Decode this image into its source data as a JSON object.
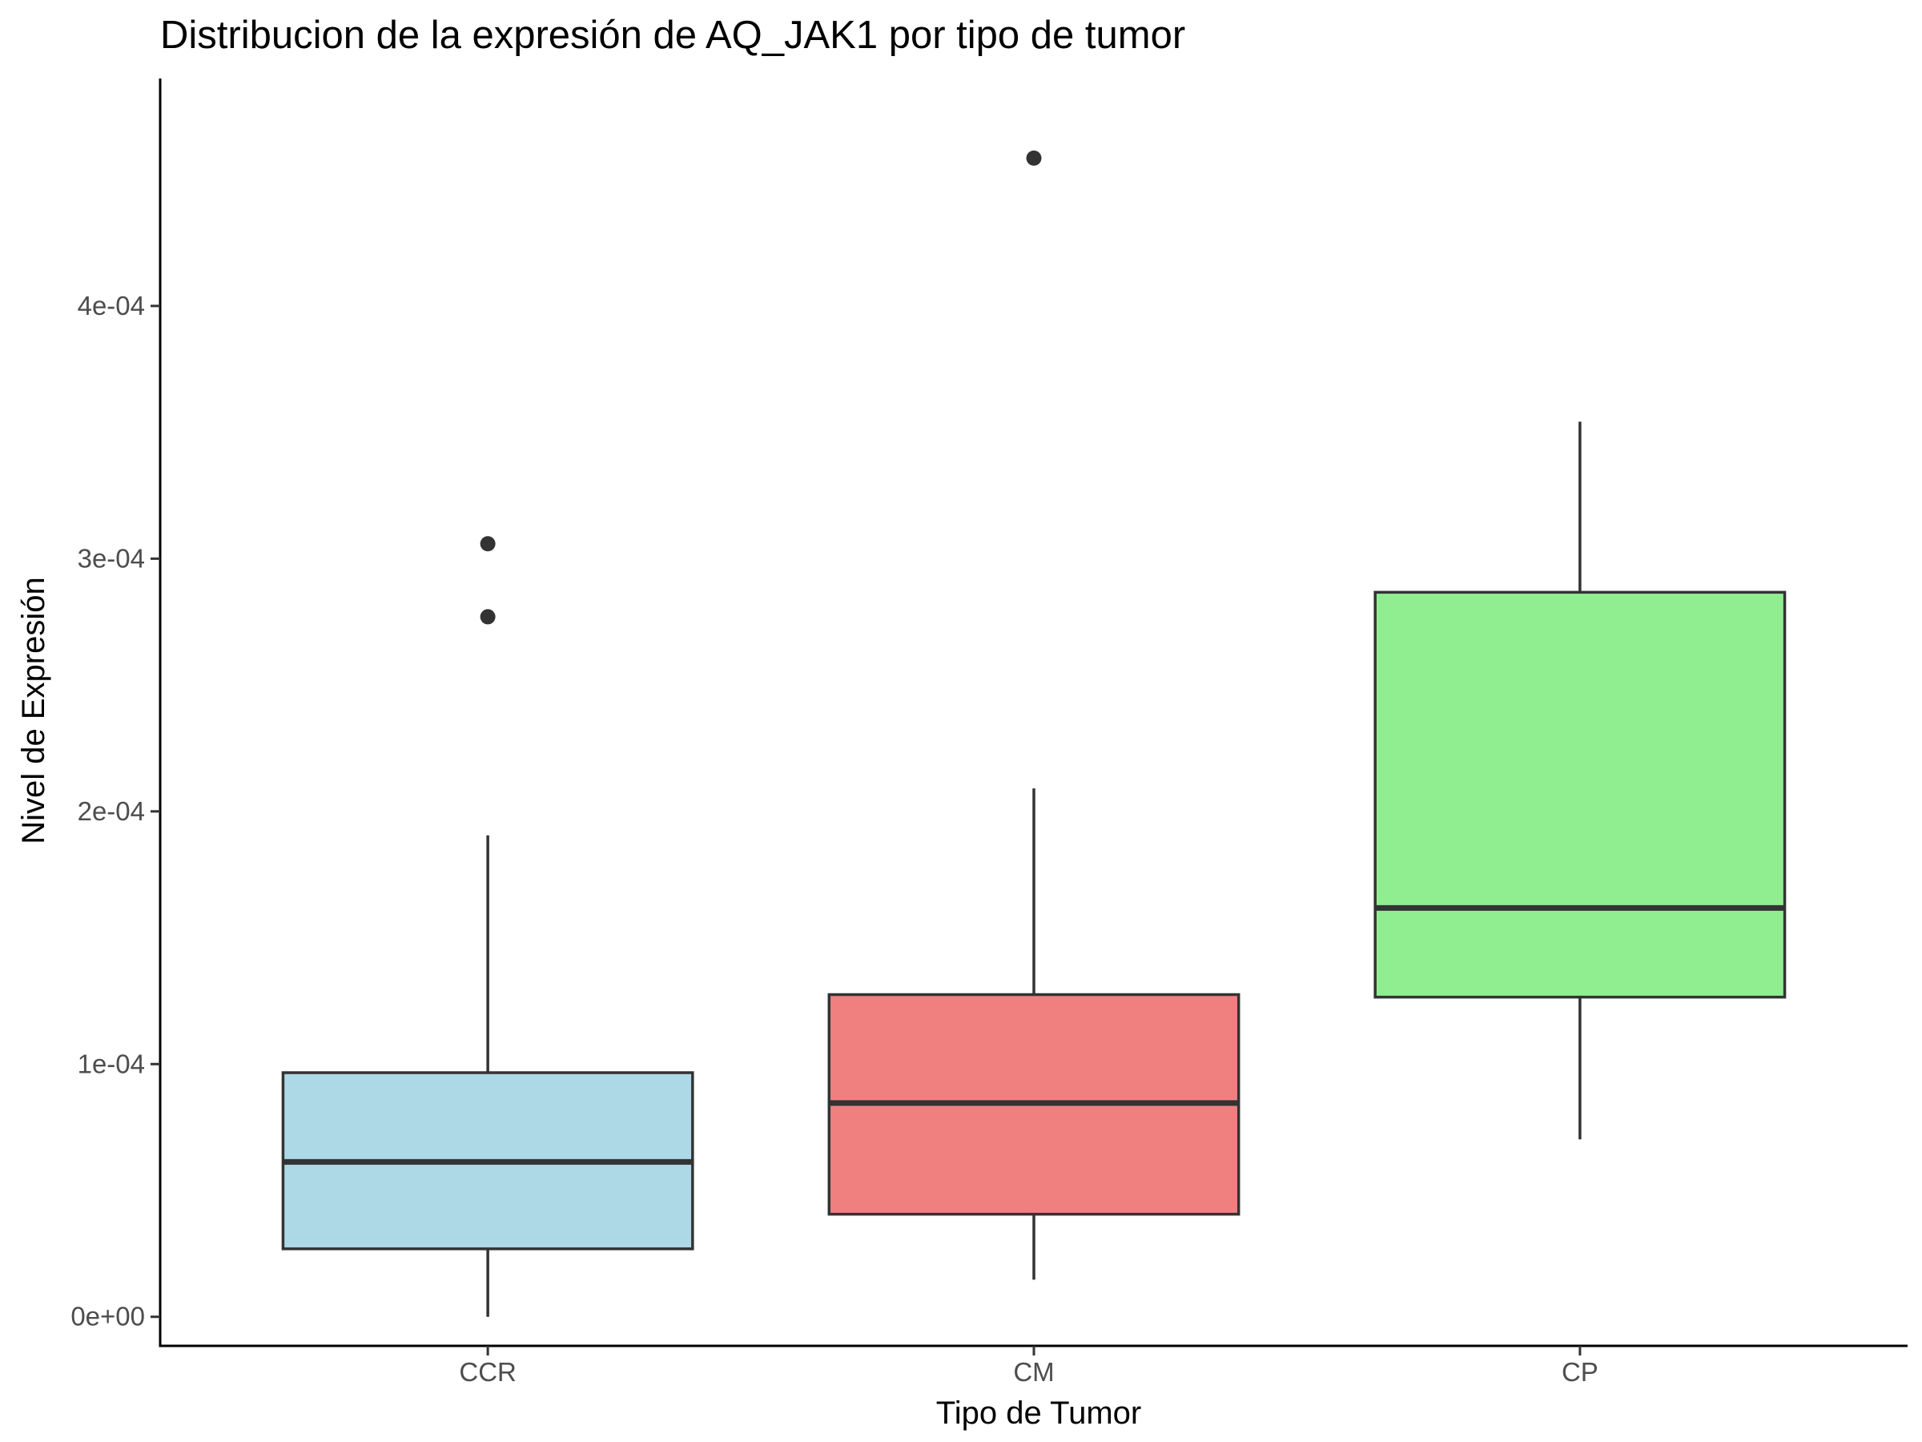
{
  "chart_data": {
    "type": "boxplot",
    "title": "Distribucion de la expresión de AQ_JAK1 por tipo de tumor",
    "xlabel": "Tipo de Tumor",
    "ylabel": "Nivel de Expresión",
    "ylim": [
      -1.15e-05,
      0.00049
    ],
    "y_ticks": [
      0,
      0.0001,
      0.0002,
      0.0003,
      0.0004
    ],
    "y_tick_labels": [
      "0e+00",
      "1e-04",
      "2e-04",
      "3e-04",
      "4e-04"
    ],
    "grid": false,
    "legend": "none",
    "categories": [
      "CCR",
      "CM",
      "CP"
    ],
    "boxes": [
      {
        "category": "CCR",
        "fill": "#ADD8E6",
        "whisker_low": 0.0,
        "q1": 2.69e-05,
        "median": 6.13e-05,
        "q3": 9.66e-05,
        "whisker_high": 0.0001905,
        "outliers": [
          0.000277,
          0.0003059
        ]
      },
      {
        "category": "CM",
        "fill": "#F08080",
        "whisker_low": 1.47e-05,
        "q1": 4.06e-05,
        "median": 8.46e-05,
        "q3": 0.0001275,
        "whisker_high": 0.0002091,
        "outliers": [
          0.0004585
        ]
      },
      {
        "category": "CP",
        "fill": "#90EE90",
        "whisker_low": 7.02e-05,
        "q1": 0.0001265,
        "median": 0.0001618,
        "q3": 0.0002867,
        "whisker_high": 0.0003542,
        "outliers": []
      }
    ]
  }
}
